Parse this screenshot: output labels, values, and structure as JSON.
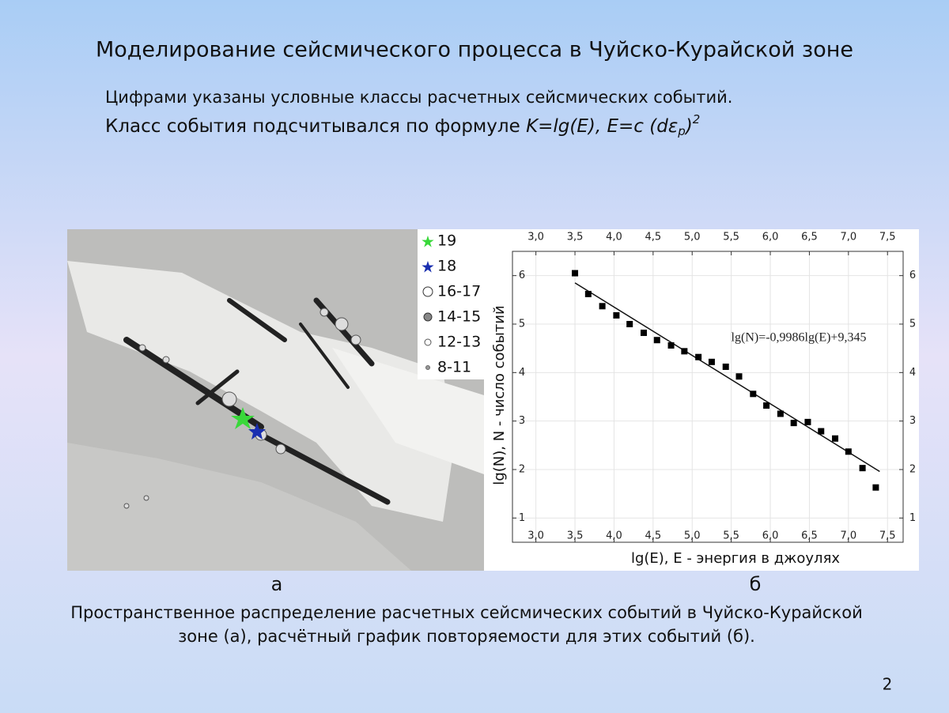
{
  "slide": {
    "title": "Моделирование сейсмического процесса в Чуйско-Курайской зоне",
    "subtitle_line1": "Цифрами указаны условные классы расчетных сейсмических событий.",
    "subtitle_line2": {
      "text": "Класс события подсчитывался по формуле ",
      "formula": "K=lg(E), E=c (dε",
      "sub": "p",
      "close": ")",
      "sup": "2"
    },
    "panel_a_label": "а",
    "panel_b_label": "б",
    "caption_line1": "Пространственное распределение расчетных сейсмических событий в Чуйско-Курайской",
    "caption_line2": "зоне (а), расчётный график повторяемости для этих событий (б).",
    "page_number": "2"
  },
  "map": {
    "legend": [
      "19",
      "18",
      "16-17",
      "14-15",
      "12-13",
      "8-11"
    ]
  },
  "chart_data": {
    "type": "scatter",
    "x_label": "lg(E), E - энергия в джоулях",
    "y_label": "lg(N), N - число событий",
    "annotation": "lg(N)=-0,9986lg(E)+9,345",
    "color": "#000000",
    "x": [
      3.5,
      3.67,
      3.85,
      4.03,
      4.2,
      4.38,
      4.55,
      4.73,
      4.9,
      5.08,
      5.25,
      5.43,
      5.6,
      5.78,
      5.95,
      6.13,
      6.3,
      6.48,
      6.65,
      6.83,
      7.0,
      7.18,
      7.35
    ],
    "values": [
      6.05,
      5.62,
      5.37,
      5.18,
      5.0,
      4.82,
      4.67,
      4.56,
      4.44,
      4.32,
      4.22,
      4.12,
      3.92,
      3.56,
      3.32,
      3.15,
      2.96,
      2.98,
      2.79,
      2.64,
      2.37,
      2.03,
      1.63
    ],
    "fit_line": {
      "x": [
        3.5,
        7.4
      ],
      "y": [
        5.85,
        1.96
      ]
    },
    "xlim": [
      2.7,
      7.7
    ],
    "ylim": [
      0.5,
      6.5
    ],
    "xticks": [
      {
        "value": 3.0,
        "label": "3,0"
      },
      {
        "value": 3.5,
        "label": "3,5"
      },
      {
        "value": 4.0,
        "label": "4,0"
      },
      {
        "value": 4.5,
        "label": "4,5"
      },
      {
        "value": 5.0,
        "label": "5,0"
      },
      {
        "value": 5.5,
        "label": "5,5"
      },
      {
        "value": 6.0,
        "label": "6,0"
      },
      {
        "value": 6.5,
        "label": "6,5"
      },
      {
        "value": 7.0,
        "label": "7,0"
      },
      {
        "value": 7.5,
        "label": "7,5"
      }
    ],
    "yticks": [
      1,
      2,
      3,
      4,
      5,
      6
    ],
    "grid": true
  }
}
